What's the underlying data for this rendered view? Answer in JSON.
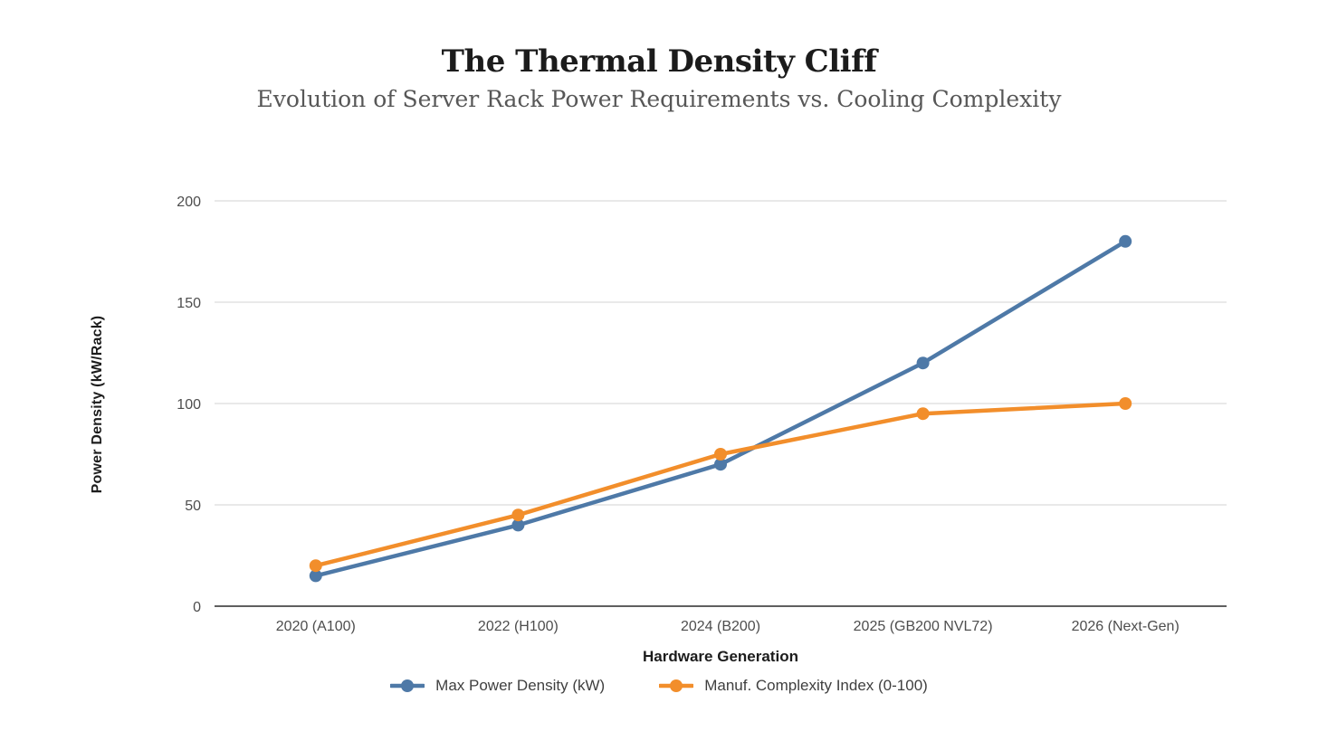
{
  "header": {
    "title": "The Thermal Density Cliff",
    "subtitle": "Evolution of Server Rack Power Requirements vs. Cooling Complexity"
  },
  "chart_data": {
    "type": "line",
    "title": "The Thermal Density Cliff",
    "subtitle": "Evolution of Server Rack Power Requirements vs. Cooling Complexity",
    "xlabel": "Hardware Generation",
    "ylabel": "Power Density (kW/Rack)",
    "categories": [
      "2020 (A100)",
      "2022 (H100)",
      "2024 (B200)",
      "2025 (GB200 NVL72)",
      "2026 (Next-Gen)"
    ],
    "series": [
      {
        "name": "Max Power Density (kW)",
        "values": [
          15,
          40,
          70,
          120,
          180
        ],
        "color": "#4E79A7"
      },
      {
        "name": "Manuf. Complexity Index (0-100)",
        "values": [
          20,
          45,
          75,
          95,
          100
        ],
        "color": "#F28E2B"
      }
    ],
    "ylim": [
      0,
      200
    ],
    "yticks": [
      0,
      50,
      100,
      150,
      200
    ],
    "grid": true,
    "legend_position": "bottom",
    "gridline_color": "#e9e9e9",
    "axis_line_color": "#2b2b2b",
    "tick_label_color": "#4d4d4d"
  }
}
